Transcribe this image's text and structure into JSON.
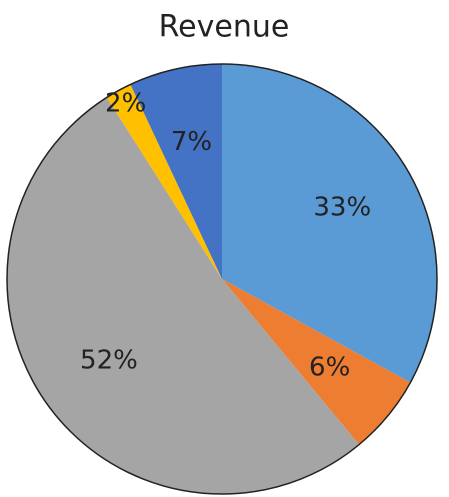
{
  "chart_data": {
    "type": "pie",
    "title": "Revenue",
    "values": [
      33,
      6,
      52,
      2,
      7
    ],
    "value_labels": [
      "33%",
      "6%",
      "52%",
      "2%",
      "7%"
    ],
    "colors": [
      "#5b9bd5",
      "#ed7d31",
      "#a5a5a5",
      "#ffc000",
      "#4472c4"
    ]
  }
}
